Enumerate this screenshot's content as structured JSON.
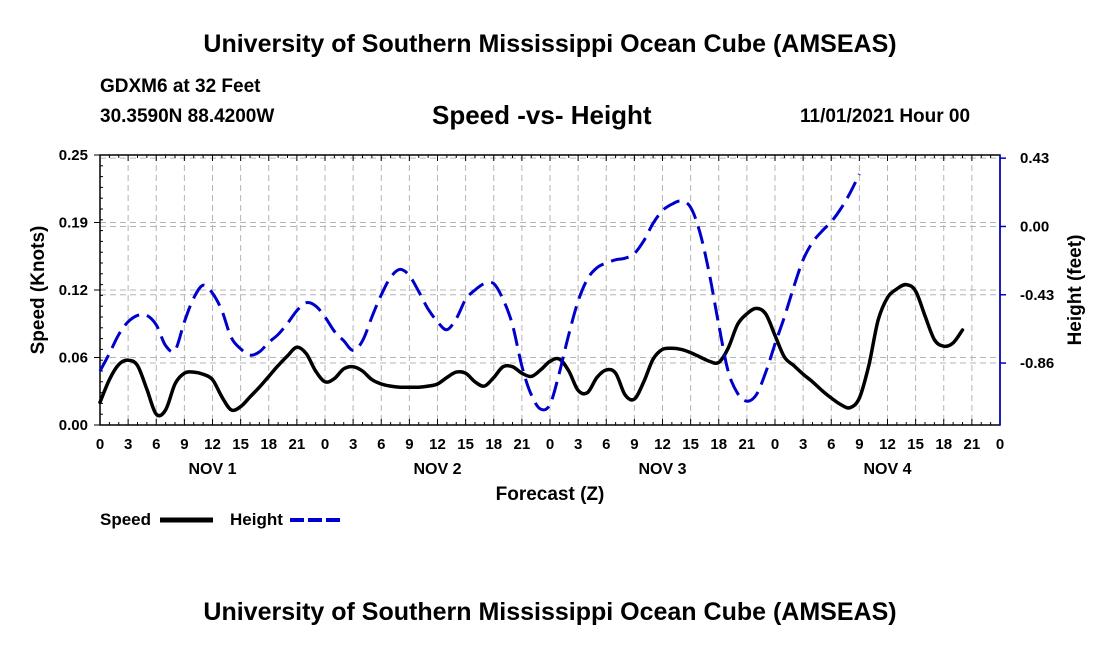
{
  "header": {
    "title": "University of Southern Mississippi Ocean Cube (AMSEAS)",
    "station": "GDXM6 at 32 Feet",
    "coords": "30.3590N  88.4200W",
    "subtitle": "Speed -vs- Height",
    "datetime": "11/01/2021 Hour 00"
  },
  "footer": {
    "title": "University of Southern Mississippi Ocean Cube (AMSEAS)"
  },
  "chart_data": {
    "type": "line",
    "title": "Speed -vs- Height",
    "xlabel": "Forecast (Z)",
    "ylabel": "Speed (Knots)",
    "y2label": "Height (feet)",
    "x_range_hours": [
      0,
      96
    ],
    "ylim": [
      0,
      0.25
    ],
    "y2lim": [
      -1.25,
      0.45
    ],
    "yticks": [
      "0.00",
      "0.06",
      "0.12",
      "0.19",
      "0.25"
    ],
    "ytick_values": [
      0,
      0.0625,
      0.125,
      0.1875,
      0.25
    ],
    "y2ticks": [
      "0.43",
      "0.00",
      "-0.43",
      "-0.86"
    ],
    "y2tick_values": [
      0.43,
      0.0,
      -0.43,
      -0.86
    ],
    "xtick_hours": [
      0,
      3,
      6,
      9,
      12,
      15,
      18,
      21,
      24,
      27,
      30,
      33,
      36,
      39,
      42,
      45,
      48,
      51,
      54,
      57,
      60,
      63,
      66,
      69,
      72,
      75,
      78,
      81,
      84,
      87,
      90,
      93,
      96
    ],
    "xtick_labels": [
      "0",
      "3",
      "6",
      "9",
      "12",
      "15",
      "18",
      "21",
      "0",
      "3",
      "6",
      "9",
      "12",
      "15",
      "18",
      "21",
      "0",
      "3",
      "6",
      "9",
      "12",
      "15",
      "18",
      "21",
      "0",
      "3",
      "6",
      "9",
      "12",
      "15",
      "18",
      "21",
      "0"
    ],
    "day_labels": [
      {
        "label": "NOV 1",
        "hour": 12
      },
      {
        "label": "NOV 2",
        "hour": 36
      },
      {
        "label": "NOV 3",
        "hour": 60
      },
      {
        "label": "NOV 4",
        "hour": 84
      }
    ],
    "grid": true,
    "legend_position": "bottom-left",
    "series": [
      {
        "name": "Speed",
        "color": "#000000",
        "style": "solid",
        "axis": "left",
        "points": [
          [
            0,
            0.021
          ],
          [
            1,
            0.042
          ],
          [
            2,
            0.056
          ],
          [
            3,
            0.06
          ],
          [
            4,
            0.055
          ],
          [
            5,
            0.033
          ],
          [
            6,
            0.01
          ],
          [
            7,
            0.014
          ],
          [
            8,
            0.038
          ],
          [
            9,
            0.048
          ],
          [
            10,
            0.049
          ],
          [
            11,
            0.047
          ],
          [
            12,
            0.042
          ],
          [
            13,
            0.026
          ],
          [
            14,
            0.014
          ],
          [
            15,
            0.017
          ],
          [
            16,
            0.026
          ],
          [
            17,
            0.035
          ],
          [
            18,
            0.045
          ],
          [
            19,
            0.055
          ],
          [
            20,
            0.064
          ],
          [
            21,
            0.072
          ],
          [
            22,
            0.066
          ],
          [
            23,
            0.05
          ],
          [
            24,
            0.04
          ],
          [
            25,
            0.043
          ],
          [
            26,
            0.052
          ],
          [
            27,
            0.054
          ],
          [
            28,
            0.05
          ],
          [
            29,
            0.042
          ],
          [
            30,
            0.038
          ],
          [
            31,
            0.036
          ],
          [
            32,
            0.035
          ],
          [
            33,
            0.035
          ],
          [
            34,
            0.035
          ],
          [
            35,
            0.036
          ],
          [
            36,
            0.038
          ],
          [
            37,
            0.044
          ],
          [
            38,
            0.049
          ],
          [
            39,
            0.048
          ],
          [
            40,
            0.04
          ],
          [
            41,
            0.036
          ],
          [
            42,
            0.044
          ],
          [
            43,
            0.054
          ],
          [
            44,
            0.054
          ],
          [
            45,
            0.048
          ],
          [
            46,
            0.045
          ],
          [
            47,
            0.051
          ],
          [
            48,
            0.059
          ],
          [
            49,
            0.061
          ],
          [
            50,
            0.05
          ],
          [
            51,
            0.032
          ],
          [
            52,
            0.03
          ],
          [
            53,
            0.044
          ],
          [
            54,
            0.051
          ],
          [
            55,
            0.048
          ],
          [
            56,
            0.028
          ],
          [
            57,
            0.024
          ],
          [
            58,
            0.04
          ],
          [
            59,
            0.061
          ],
          [
            60,
            0.07
          ],
          [
            61,
            0.071
          ],
          [
            62,
            0.07
          ],
          [
            63,
            0.067
          ],
          [
            64,
            0.063
          ],
          [
            65,
            0.059
          ],
          [
            66,
            0.058
          ],
          [
            67,
            0.071
          ],
          [
            68,
            0.093
          ],
          [
            69,
            0.103
          ],
          [
            70,
            0.108
          ],
          [
            71,
            0.103
          ],
          [
            72,
            0.083
          ],
          [
            73,
            0.063
          ],
          [
            74,
            0.055
          ],
          [
            75,
            0.047
          ],
          [
            76,
            0.04
          ],
          [
            77,
            0.032
          ],
          [
            78,
            0.025
          ],
          [
            79,
            0.019
          ],
          [
            80,
            0.016
          ],
          [
            81,
            0.025
          ],
          [
            82,
            0.055
          ],
          [
            83,
            0.097
          ],
          [
            84,
            0.118
          ],
          [
            85,
            0.126
          ],
          [
            86,
            0.13
          ],
          [
            87,
            0.124
          ],
          [
            88,
            0.101
          ],
          [
            89,
            0.079
          ],
          [
            90,
            0.073
          ],
          [
            91,
            0.076
          ],
          [
            92,
            0.088
          ]
        ]
      },
      {
        "name": "Height",
        "color": "#0000cc",
        "style": "dashed",
        "axis": "right",
        "points": [
          [
            0,
            -0.91
          ],
          [
            1,
            -0.8
          ],
          [
            2,
            -0.68
          ],
          [
            3,
            -0.6
          ],
          [
            4,
            -0.56
          ],
          [
            5,
            -0.56
          ],
          [
            6,
            -0.62
          ],
          [
            7,
            -0.75
          ],
          [
            8,
            -0.78
          ],
          [
            9,
            -0.6
          ],
          [
            10,
            -0.45
          ],
          [
            11,
            -0.37
          ],
          [
            12,
            -0.42
          ],
          [
            13,
            -0.53
          ],
          [
            14,
            -0.7
          ],
          [
            15,
            -0.77
          ],
          [
            16,
            -0.81
          ],
          [
            17,
            -0.79
          ],
          [
            18,
            -0.73
          ],
          [
            19,
            -0.68
          ],
          [
            20,
            -0.61
          ],
          [
            21,
            -0.53
          ],
          [
            22,
            -0.48
          ],
          [
            23,
            -0.5
          ],
          [
            24,
            -0.57
          ],
          [
            25,
            -0.66
          ],
          [
            26,
            -0.72
          ],
          [
            27,
            -0.78
          ],
          [
            28,
            -0.72
          ],
          [
            29,
            -0.57
          ],
          [
            30,
            -0.43
          ],
          [
            31,
            -0.32
          ],
          [
            32,
            -0.27
          ],
          [
            33,
            -0.31
          ],
          [
            34,
            -0.41
          ],
          [
            35,
            -0.52
          ],
          [
            36,
            -0.6
          ],
          [
            37,
            -0.65
          ],
          [
            38,
            -0.58
          ],
          [
            39,
            -0.46
          ],
          [
            40,
            -0.4
          ],
          [
            41,
            -0.36
          ],
          [
            42,
            -0.36
          ],
          [
            43,
            -0.46
          ],
          [
            44,
            -0.62
          ],
          [
            45,
            -0.88
          ],
          [
            46,
            -1.06
          ],
          [
            47,
            -1.15
          ],
          [
            48,
            -1.12
          ],
          [
            49,
            -0.92
          ],
          [
            50,
            -0.68
          ],
          [
            51,
            -0.47
          ],
          [
            52,
            -0.33
          ],
          [
            53,
            -0.26
          ],
          [
            54,
            -0.23
          ],
          [
            55,
            -0.21
          ],
          [
            56,
            -0.2
          ],
          [
            57,
            -0.17
          ],
          [
            58,
            -0.09
          ],
          [
            59,
            0.02
          ],
          [
            60,
            0.1
          ],
          [
            61,
            0.14
          ],
          [
            62,
            0.16
          ],
          [
            63,
            0.12
          ],
          [
            64,
            -0.04
          ],
          [
            65,
            -0.3
          ],
          [
            66,
            -0.62
          ],
          [
            67,
            -0.91
          ],
          [
            68,
            -1.05
          ],
          [
            69,
            -1.1
          ],
          [
            70,
            -1.06
          ],
          [
            71,
            -0.92
          ],
          [
            72,
            -0.74
          ],
          [
            73,
            -0.57
          ],
          [
            74,
            -0.38
          ],
          [
            75,
            -0.21
          ],
          [
            76,
            -0.1
          ],
          [
            77,
            -0.03
          ],
          [
            78,
            0.03
          ],
          [
            79,
            0.11
          ],
          [
            80,
            0.21
          ],
          [
            81,
            0.33
          ]
        ]
      }
    ]
  },
  "legend": {
    "speed_label": "Speed",
    "height_label": "Height"
  }
}
